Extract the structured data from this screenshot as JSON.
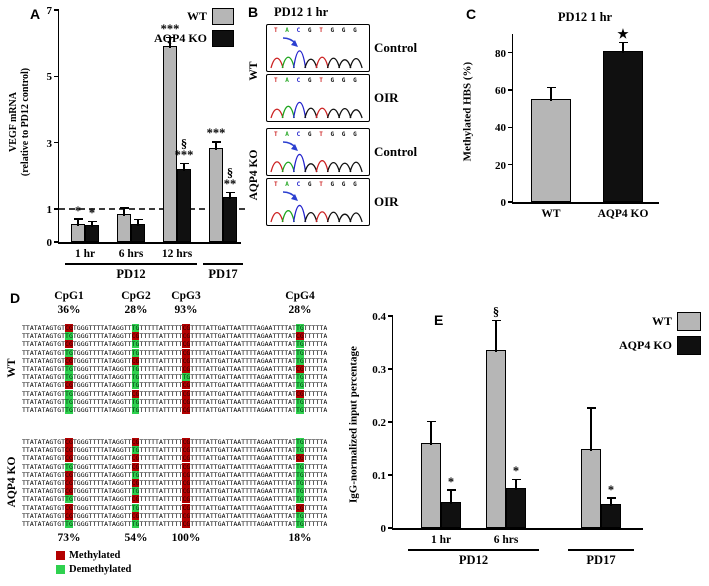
{
  "colors": {
    "wt": "#b6b6b6",
    "ko": "#101010",
    "methylated": "#b30000",
    "demethylated": "#2fd14f",
    "base_A": "#1ea51e",
    "base_C": "#2222cc",
    "base_G": "#111111",
    "base_T": "#cc2222",
    "arrow": "#2b3fd0"
  },
  "panels": {
    "A": {
      "label": "A"
    },
    "B": {
      "label": "B",
      "title": "PD12 1 hr",
      "bases": [
        "T",
        "A",
        "C",
        "G",
        "T",
        "G",
        "G",
        "G"
      ],
      "groups": [
        {
          "side_label": "WT",
          "traces": [
            {
              "right_label": "Control",
              "arrow": true
            },
            {
              "right_label": "OIR",
              "arrow": false
            }
          ]
        },
        {
          "side_label": "AQP4 KO",
          "traces": [
            {
              "right_label": "Control",
              "arrow": true
            },
            {
              "right_label": "OIR",
              "arrow": true
            }
          ]
        }
      ]
    },
    "C": {
      "label": "C"
    },
    "D": {
      "label": "D",
      "wt_side_label": "WT",
      "ko_side_label": "AQP4 KO",
      "cpg_headers": [
        {
          "name": "CpG1",
          "wt_pct": "36%",
          "ko_pct": "73%"
        },
        {
          "name": "CpG2",
          "wt_pct": "28%",
          "ko_pct": "54%"
        },
        {
          "name": "CpG3",
          "wt_pct": "93%",
          "ko_pct": "100%"
        },
        {
          "name": "CpG4",
          "wt_pct": "28%",
          "ko_pct": "18%"
        }
      ],
      "row_template": "TTATATAGTGT??TGGGTTTTATAGGTT??TTTTTATTTTT??TTTTATTGATTAATTTTAGAATTTTAT??TTTTTA",
      "cpg_positions": [
        11,
        28,
        41,
        70
      ],
      "methylated_pair": "CG",
      "demethylated_pair": "TG",
      "wt_rows": [
        [
          1,
          0,
          1,
          0
        ],
        [
          0,
          1,
          1,
          1
        ],
        [
          1,
          0,
          1,
          0
        ],
        [
          0,
          0,
          1,
          0
        ],
        [
          1,
          1,
          1,
          0
        ],
        [
          0,
          0,
          1,
          1
        ],
        [
          0,
          0,
          0,
          0
        ],
        [
          1,
          0,
          1,
          0
        ],
        [
          0,
          1,
          1,
          1
        ],
        [
          0,
          0,
          1,
          0
        ],
        [
          0,
          0,
          1,
          0
        ]
      ],
      "ko_rows": [
        [
          1,
          1,
          1,
          0
        ],
        [
          1,
          0,
          1,
          0
        ],
        [
          1,
          1,
          1,
          1
        ],
        [
          0,
          1,
          1,
          0
        ],
        [
          1,
          0,
          1,
          0
        ],
        [
          1,
          1,
          1,
          0
        ],
        [
          1,
          0,
          1,
          0
        ],
        [
          0,
          1,
          1,
          0
        ],
        [
          1,
          0,
          1,
          1
        ],
        [
          1,
          1,
          1,
          0
        ],
        [
          0,
          0,
          1,
          0
        ]
      ],
      "legend": [
        {
          "label": "Methylated",
          "color_key": "methylated"
        },
        {
          "label": "Demethylated",
          "color_key": "demethylated"
        }
      ]
    },
    "E": {
      "label": "E"
    }
  },
  "chart_data": [
    {
      "id": "A",
      "type": "bar",
      "title": "",
      "ylabel": "VEGF mRNA\n(relative to PD12 control)",
      "ylim": [
        0,
        7
      ],
      "yticks": [
        "0",
        "1",
        "3",
        "5",
        "7"
      ],
      "ref_line": 1,
      "categories": [
        "1 hr",
        "6 hrs",
        "12 hrs",
        ""
      ],
      "group_brackets": [
        {
          "label": "PD12",
          "from": 0,
          "to": 2
        },
        {
          "label": "PD17",
          "from": 3,
          "to": 3
        }
      ],
      "legend": [
        "WT",
        "AQP4 KO"
      ],
      "series": [
        {
          "name": "WT",
          "color_key": "wt",
          "values": [
            0.55,
            0.85,
            5.9,
            2.85
          ],
          "errors": [
            0.12,
            0.15,
            0.25,
            0.15
          ],
          "sig": [
            [
              "*"
            ],
            [],
            [
              "***"
            ],
            [
              "***"
            ]
          ]
        },
        {
          "name": "AQP4 KO",
          "color_key": "ko",
          "values": [
            0.5,
            0.55,
            2.2,
            1.35
          ],
          "errors": [
            0.1,
            0.1,
            0.15,
            0.12
          ],
          "sig": [
            [
              "*"
            ],
            [],
            [
              "§",
              "***"
            ],
            [
              "§",
              "**"
            ]
          ]
        }
      ]
    },
    {
      "id": "C",
      "type": "bar",
      "title": "PD12 1 hr",
      "ylabel": "Methylated HBS (%)",
      "ylim": [
        0,
        90
      ],
      "yticks": [
        "0",
        "20",
        "40",
        "60",
        "80"
      ],
      "categories": [
        "WT",
        "AQP4 KO"
      ],
      "series": [
        {
          "name": "WT",
          "color_key": "wt",
          "values": [
            55,
            null
          ],
          "errors": [
            6,
            null
          ],
          "sig": [
            [],
            null
          ]
        },
        {
          "name": "AQP4 KO",
          "color_key": "ko",
          "values": [
            null,
            81
          ],
          "errors": [
            null,
            4
          ],
          "sig": [
            null,
            [
              "★"
            ]
          ]
        }
      ]
    },
    {
      "id": "E",
      "type": "bar",
      "title": "",
      "ylabel": "IgG-normalized input percentage",
      "ylim": [
        0,
        0.4
      ],
      "yticks": [
        "0",
        "0.1",
        "0.2",
        "0.3",
        "0.4"
      ],
      "categories": [
        "1 hr",
        "6 hrs",
        ""
      ],
      "group_brackets": [
        {
          "label": "PD12",
          "from": 0,
          "to": 1
        },
        {
          "label": "PD17",
          "from": 2,
          "to": 2
        }
      ],
      "legend": [
        "WT",
        "AQP4 KO"
      ],
      "series": [
        {
          "name": "WT",
          "color_key": "wt",
          "values": [
            0.16,
            0.335,
            0.15
          ],
          "errors": [
            0.04,
            0.055,
            0.075
          ],
          "sig": [
            [],
            [
              "§"
            ],
            []
          ]
        },
        {
          "name": "AQP4 KO",
          "color_key": "ko",
          "values": [
            0.05,
            0.075,
            0.045
          ],
          "errors": [
            0.02,
            0.015,
            0.01
          ],
          "sig": [
            [
              "*"
            ],
            [
              "*"
            ],
            [
              "*"
            ]
          ]
        }
      ]
    }
  ]
}
